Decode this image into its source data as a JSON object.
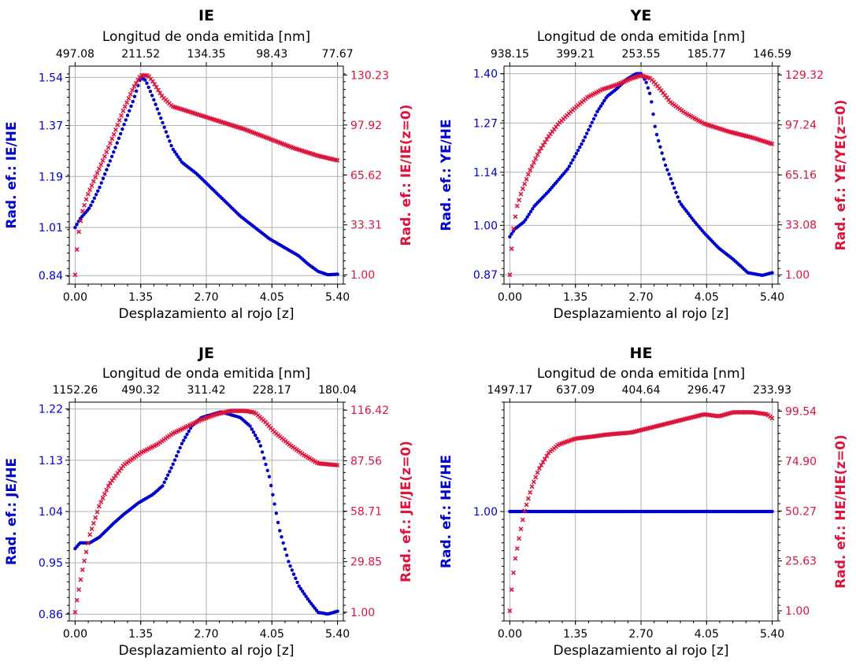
{
  "colors": {
    "left": "#0000cc",
    "right": "#dc143c",
    "grid": "#b0b0b0"
  },
  "common": {
    "top_xlabel": "Longitud de onda emitida [nm]",
    "bottom_xlabel": "Desplazamiento al rojo [z]",
    "x_ticks": [
      "0.00",
      "1.35",
      "2.70",
      "4.05",
      "5.40"
    ]
  },
  "chart_data": [
    {
      "type": "scatter",
      "title": "IE",
      "xlim": [
        -0.12,
        5.52
      ],
      "top_ticks": [
        "497.08",
        "211.52",
        "134.35",
        "98.43",
        "77.67"
      ],
      "left": {
        "label": "Rad. ef.: IE/HE",
        "ylim": [
          0.81,
          1.58
        ],
        "ticks": [
          0.84,
          1.01,
          1.19,
          1.37,
          1.54
        ],
        "tick_labels": [
          "0.84",
          "1.01",
          "1.19",
          "1.37",
          "1.54"
        ]
      },
      "right": {
        "label": "Rad. ef.: IE/IE(z=0)",
        "ylim": [
          -5,
          136
        ],
        "ticks": [
          1.0,
          33.31,
          65.62,
          97.92,
          130.23
        ],
        "tick_labels": [
          "1.00",
          "33.31",
          "65.62",
          "97.92",
          "130.23"
        ]
      },
      "series": [
        {
          "axis": "left",
          "marker": "circle",
          "x": [
            0,
            0.1,
            0.3,
            0.5,
            0.8,
            1.0,
            1.2,
            1.35,
            1.45,
            1.6,
            1.8,
            2.0,
            2.2,
            2.5,
            2.8,
            3.1,
            3.4,
            3.7,
            4.0,
            4.2,
            4.4,
            4.6,
            4.8,
            5.0,
            5.2,
            5.4
          ],
          "y": [
            1.01,
            1.04,
            1.08,
            1.15,
            1.28,
            1.37,
            1.46,
            1.54,
            1.53,
            1.47,
            1.38,
            1.29,
            1.24,
            1.2,
            1.15,
            1.1,
            1.05,
            1.01,
            0.97,
            0.95,
            0.93,
            0.91,
            0.88,
            0.855,
            0.843,
            0.845
          ]
        },
        {
          "axis": "right",
          "marker": "x",
          "x": [
            0,
            0.03,
            0.08,
            0.15,
            0.25,
            0.4,
            0.6,
            0.8,
            1.0,
            1.2,
            1.35,
            1.5,
            1.6,
            1.8,
            2.0,
            2.3,
            2.7,
            3.1,
            3.5,
            4.0,
            4.5,
            5.0,
            5.4
          ],
          "y": [
            1,
            15,
            30,
            42,
            52,
            63,
            77,
            92,
            108,
            122,
            130,
            130,
            126,
            116,
            110,
            107,
            103,
            99,
            95,
            89,
            83,
            78,
            75
          ]
        }
      ]
    },
    {
      "type": "scatter",
      "title": "YE",
      "xlim": [
        -0.12,
        5.52
      ],
      "top_ticks": [
        "938.15",
        "399.21",
        "253.55",
        "185.77",
        "146.59"
      ],
      "left": {
        "label": "Rad. ef.: YE/HE",
        "ylim": [
          0.845,
          1.42
        ],
        "ticks": [
          0.87,
          1.0,
          1.14,
          1.27,
          1.4
        ],
        "tick_labels": [
          "0.87",
          "1.00",
          "1.14",
          "1.27",
          "1.40"
        ]
      },
      "right": {
        "label": "Rad. ef.: YE/YE(z=0)",
        "ylim": [
          -5,
          135
        ],
        "ticks": [
          1.0,
          33.08,
          65.16,
          97.24,
          129.32
        ],
        "tick_labels": [
          "1.00",
          "33.08",
          "65.16",
          "97.24",
          "129.32"
        ]
      },
      "series": [
        {
          "axis": "left",
          "marker": "circle",
          "x": [
            0,
            0.1,
            0.3,
            0.5,
            0.8,
            1.0,
            1.2,
            1.5,
            1.8,
            2.0,
            2.2,
            2.4,
            2.6,
            2.7,
            2.8,
            2.9,
            3.0,
            3.2,
            3.5,
            3.8,
            4.0,
            4.3,
            4.6,
            4.9,
            5.2,
            5.4
          ],
          "y": [
            0.97,
            0.99,
            1.01,
            1.05,
            1.09,
            1.12,
            1.15,
            1.22,
            1.3,
            1.34,
            1.36,
            1.385,
            1.4,
            1.4,
            1.38,
            1.34,
            1.25,
            1.16,
            1.06,
            1.01,
            0.98,
            0.94,
            0.91,
            0.875,
            0.868,
            0.875
          ]
        },
        {
          "axis": "right",
          "marker": "x",
          "x": [
            0,
            0.03,
            0.08,
            0.15,
            0.25,
            0.4,
            0.6,
            0.8,
            1.0,
            1.3,
            1.6,
            1.9,
            2.2,
            2.5,
            2.7,
            2.9,
            3.1,
            3.3,
            3.6,
            4.0,
            4.5,
            5.0,
            5.4
          ],
          "y": [
            1,
            15,
            32,
            45,
            55,
            67,
            80,
            90,
            98,
            107,
            115,
            120,
            123,
            127,
            129,
            127,
            120,
            112,
            105,
            98,
            93,
            89,
            85
          ]
        }
      ]
    },
    {
      "type": "scatter",
      "title": "JE",
      "xlim": [
        -0.12,
        5.52
      ],
      "top_ticks": [
        "1152.26",
        "490.32",
        "311.42",
        "228.17",
        "180.04"
      ],
      "left": {
        "label": "Rad. ef.: JE/HE",
        "ylim": [
          0.848,
          1.232
        ],
        "ticks": [
          0.86,
          0.95,
          1.04,
          1.13,
          1.22
        ],
        "tick_labels": [
          "0.86",
          "0.95",
          "1.04",
          "1.13",
          "1.22"
        ]
      },
      "right": {
        "label": "Rad. ef.: JE/JE(z=0)",
        "ylim": [
          -4,
          121
        ],
        "ticks": [
          1.0,
          29.85,
          58.71,
          87.56,
          116.42
        ],
        "tick_labels": [
          "1.00",
          "29.85",
          "58.71",
          "87.56",
          "116.42"
        ]
      },
      "series": [
        {
          "axis": "left",
          "marker": "circle",
          "x": [
            0,
            0.1,
            0.3,
            0.5,
            0.8,
            1.0,
            1.3,
            1.6,
            1.8,
            2.0,
            2.2,
            2.4,
            2.6,
            2.8,
            3.0,
            3.2,
            3.4,
            3.6,
            3.8,
            4.0,
            4.2,
            4.4,
            4.6,
            4.8,
            5.0,
            5.2,
            5.4
          ],
          "y": [
            0.975,
            0.985,
            0.985,
            0.995,
            1.02,
            1.035,
            1.055,
            1.07,
            1.085,
            1.12,
            1.16,
            1.19,
            1.205,
            1.21,
            1.215,
            1.21,
            1.205,
            1.19,
            1.16,
            1.1,
            1.01,
            0.95,
            0.91,
            0.885,
            0.863,
            0.86,
            0.865
          ]
        },
        {
          "axis": "right",
          "marker": "x",
          "x": [
            0,
            0.05,
            0.15,
            0.3,
            0.5,
            0.7,
            1.0,
            1.35,
            1.7,
            2.0,
            2.3,
            2.6,
            2.9,
            3.2,
            3.5,
            3.7,
            3.9,
            4.1,
            4.4,
            4.7,
            5.0,
            5.4
          ],
          "y": [
            1,
            10,
            25,
            45,
            62,
            74,
            85,
            92,
            97,
            103,
            107,
            111,
            114,
            116,
            116,
            115,
            110,
            104,
            97,
            91,
            86,
            85
          ]
        }
      ]
    },
    {
      "type": "scatter",
      "title": "HE",
      "xlim": [
        -0.12,
        5.52
      ],
      "top_ticks": [
        "1497.17",
        "637.09",
        "404.64",
        "296.47",
        "233.93"
      ],
      "left": {
        "label": "Rad. ef.: HE/HE",
        "ylim": [
          0.8,
          1.2
        ],
        "ticks": [
          1.0
        ],
        "tick_labels": [
          "1.00"
        ]
      },
      "right": {
        "label": "Rad. ef.: HE/HE(z=0)",
        "ylim": [
          -4,
          104
        ],
        "ticks": [
          1.0,
          25.63,
          50.27,
          74.9,
          99.54
        ],
        "tick_labels": [
          "1.00",
          "25.63",
          "50.27",
          "74.90",
          "99.54"
        ]
      },
      "series": [
        {
          "axis": "left",
          "marker": "circle",
          "x": [
            0,
            0.2,
            0.5,
            1.0,
            1.5,
            2.0,
            2.5,
            3.0,
            3.5,
            4.0,
            4.5,
            5.0,
            5.4
          ],
          "y": [
            1,
            1,
            1,
            1,
            1,
            1,
            1,
            1,
            1,
            1,
            1,
            1,
            1
          ]
        },
        {
          "axis": "right",
          "marker": "x",
          "x": [
            0,
            0.04,
            0.1,
            0.2,
            0.3,
            0.45,
            0.6,
            0.8,
            1.0,
            1.35,
            1.7,
            2.0,
            2.5,
            3.0,
            3.5,
            4.0,
            4.3,
            4.6,
            5.0,
            5.3,
            5.4
          ],
          "y": [
            1,
            12,
            25,
            38,
            50,
            62,
            71,
            79,
            83,
            86,
            87,
            88,
            89,
            92,
            95,
            98,
            97,
            99,
            99,
            98,
            96
          ]
        }
      ]
    }
  ]
}
